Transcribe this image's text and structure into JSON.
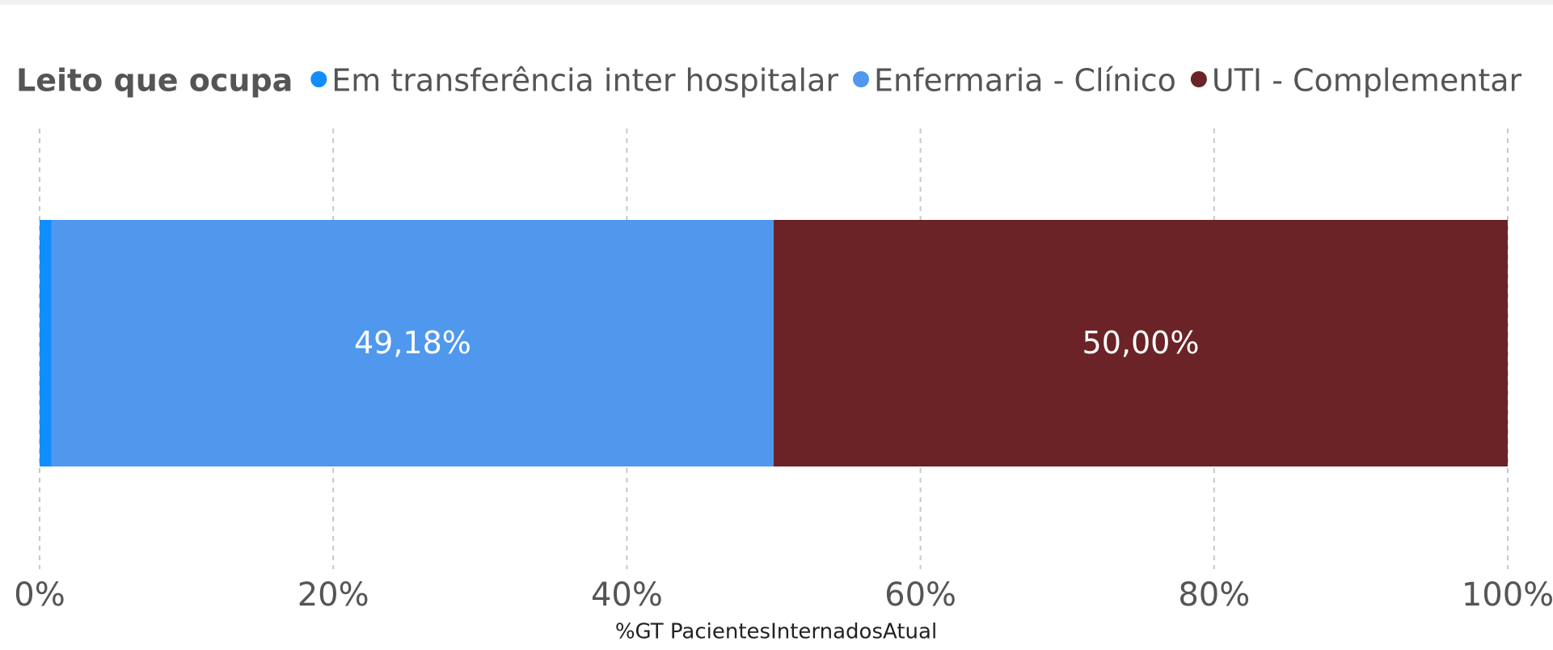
{
  "chart_data": {
    "type": "stacked-bar-100",
    "orientation": "horizontal",
    "legend_title": "Leito que ocupa",
    "legend_position": "top-left",
    "x_label": "%GT PacientesInternadosAtual",
    "categories": [
      null
    ],
    "series": [
      {
        "name": "Em transferência inter hospitalar",
        "color": "#118DFF",
        "values": [
          0.82
        ]
      },
      {
        "name": "Enfermaria - Clínico",
        "color": "#4F98EE",
        "values": [
          49.18
        ],
        "value_labels": [
          "49,18%"
        ]
      },
      {
        "name": "UTI - Complementar",
        "color": "#6B2328",
        "values": [
          50.0
        ],
        "value_labels": [
          "50,00%"
        ]
      }
    ],
    "xlim": [
      0,
      100
    ],
    "xticks": [
      {
        "value": 0,
        "label": "0%"
      },
      {
        "value": 20,
        "label": "20%"
      },
      {
        "value": 40,
        "label": "40%"
      },
      {
        "value": 60,
        "label": "60%"
      },
      {
        "value": 80,
        "label": "80%"
      },
      {
        "value": 100,
        "label": "100%"
      }
    ],
    "grid": true
  }
}
